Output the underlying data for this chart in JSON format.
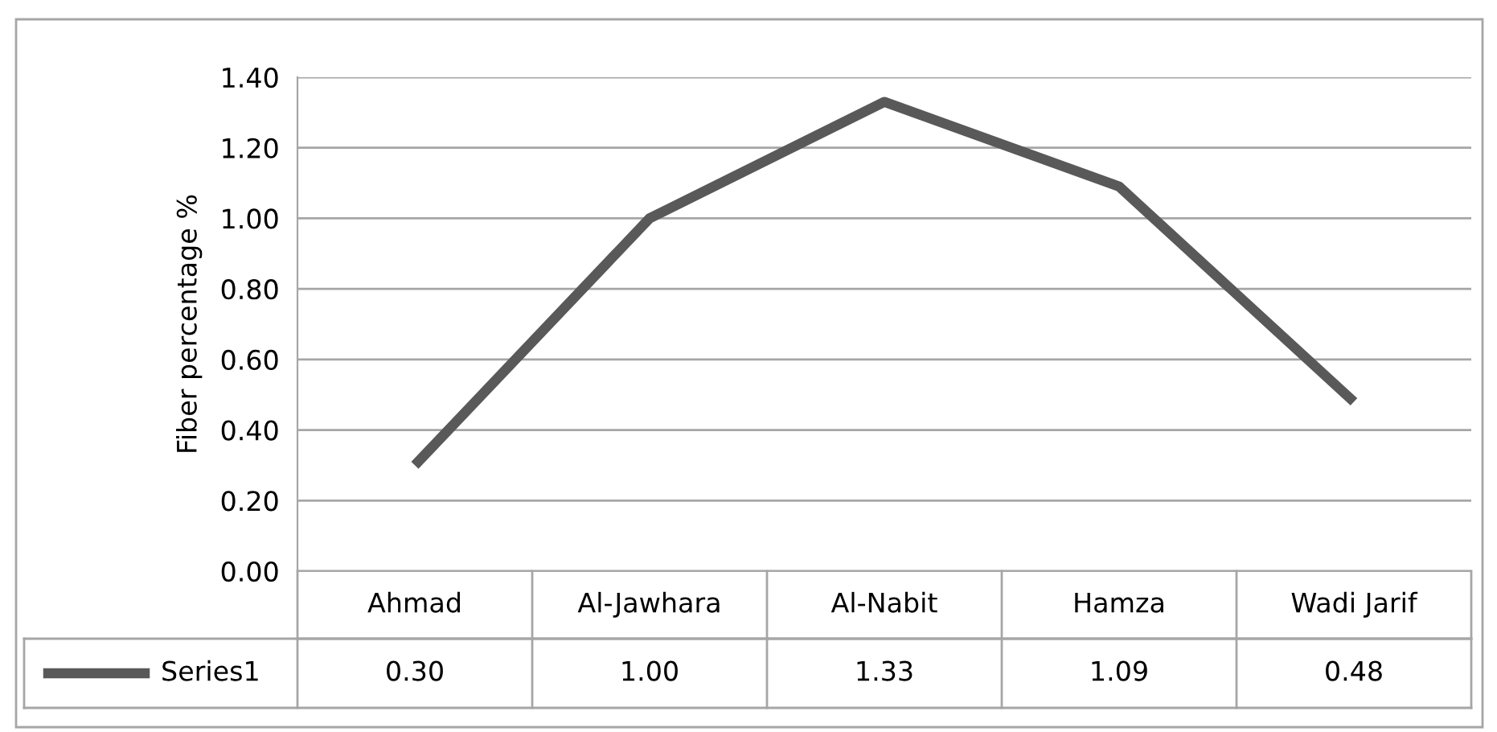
{
  "chart_data": {
    "type": "line",
    "ylabel": "Fiber percentage %",
    "categories": [
      "Ahmad",
      "Al-Jawhara",
      "Al-Nabit",
      "Hamza",
      "Wadi Jarif"
    ],
    "series": [
      {
        "name": "Series1",
        "color": "#595959",
        "values": [
          0.3,
          1.0,
          1.33,
          1.09,
          0.48
        ],
        "value_labels": [
          "0.30",
          "1.00",
          "1.33",
          "1.09",
          "0.48"
        ]
      }
    ],
    "ylim": [
      0,
      1.4
    ],
    "yticks": [
      {
        "value": 0,
        "label": "0.00"
      },
      {
        "value": 0.2,
        "label": "0.20"
      },
      {
        "value": 0.4,
        "label": "0.40"
      },
      {
        "value": 0.6,
        "label": "0.60"
      },
      {
        "value": 0.8,
        "label": "0.80"
      },
      {
        "value": 1.0,
        "label": "1.00"
      },
      {
        "value": 1.2,
        "label": "1.20"
      },
      {
        "value": 1.4,
        "label": "1.40"
      }
    ],
    "grid": "y",
    "marker": "none",
    "line_style": "solid"
  }
}
